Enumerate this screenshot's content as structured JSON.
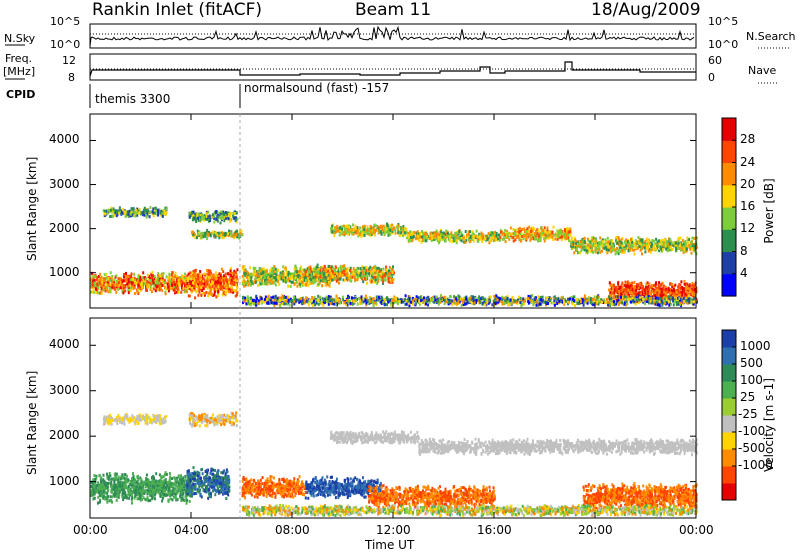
{
  "header": {
    "title": "Rankin Inlet (fitACF)",
    "beam": "Beam 11",
    "date": "18/Aug/2009"
  },
  "status_panels": {
    "nsky_label": "N.Sky",
    "nsky_ticks": [
      "10^5",
      "10^0"
    ],
    "nsearch_label": "N.Search",
    "nsearch_ticks": [
      "10^5",
      "10^0"
    ],
    "freq_label_line1": "Freq.",
    "freq_label_line2": "[MHz]",
    "freq_ticks": [
      "12",
      "8"
    ],
    "nave_label": "Nave",
    "nave_ticks": [
      "60",
      "0"
    ],
    "cpid_label": "CPID",
    "cpid_entries": [
      "themis 3300",
      "normalsound (fast) -157"
    ]
  },
  "chart_data": [
    {
      "type": "heatmap",
      "name": "power",
      "ylabel": "Slant Range [km]",
      "y_ticks": [
        1000,
        2000,
        3000,
        4000
      ],
      "ylim": [
        200,
        4600
      ],
      "colorbar_label": "Power [dB]",
      "colorbar_ticks": [
        4,
        8,
        12,
        16,
        20,
        24,
        28
      ],
      "colorbar_colors": [
        "#0000ff",
        "#1e3fa8",
        "#2d8f4e",
        "#7dcc3c",
        "#ffd400",
        "#ff8c00",
        "#ff4500",
        "#e60000"
      ]
    },
    {
      "type": "heatmap",
      "name": "velocity",
      "ylabel": "Slant Range [km]",
      "y_ticks": [
        1000,
        2000,
        3000,
        4000
      ],
      "ylim": [
        200,
        4600
      ],
      "colorbar_label": "Velocity [m s-1]",
      "colorbar_ticks": [
        1000,
        500,
        100,
        25,
        -25,
        -100,
        -500,
        -1000
      ],
      "colorbar_colors": [
        "#1b3fa8",
        "#2f6fb0",
        "#2e8b57",
        "#4caf50",
        "#9acd32",
        "#c0c0c0",
        "#ffd400",
        "#ff8c00",
        "#ff4500",
        "#e60000"
      ]
    }
  ],
  "time_axis": {
    "xlabel": "Time UT",
    "ticks": [
      "00:00",
      "04:00",
      "08:00",
      "12:00",
      "16:00",
      "20:00",
      "00:00"
    ]
  }
}
